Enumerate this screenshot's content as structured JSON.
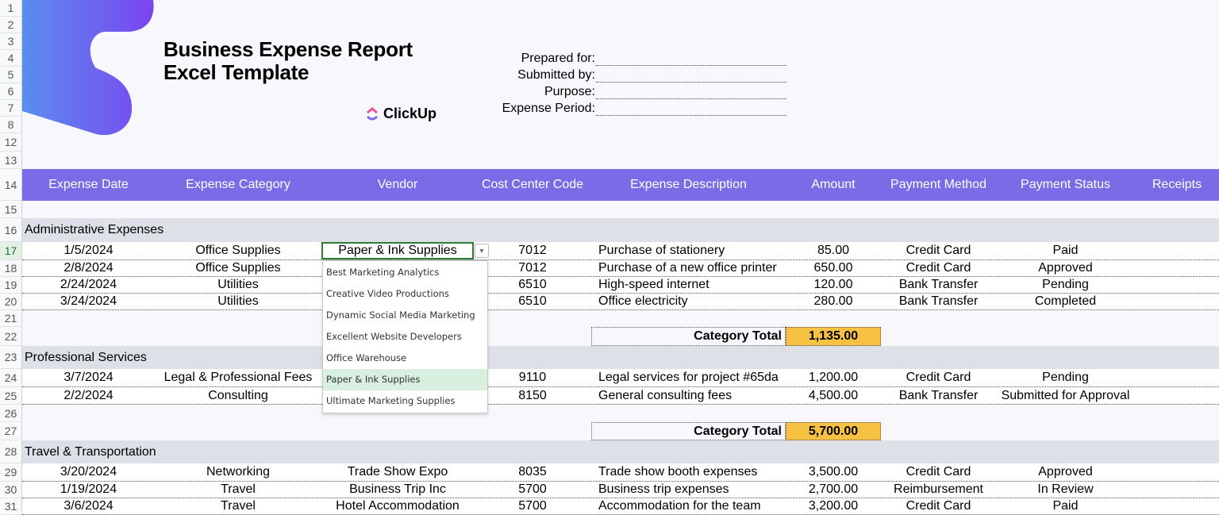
{
  "title": {
    "line1": "Business Expense Report",
    "line2": "Excel Template",
    "logo_text": "ClickUp"
  },
  "colors": {
    "header": "#7b6be6",
    "section": "#dde0e6",
    "total": "#f7c244",
    "blob_start": "#5b8def",
    "blob_end": "#7a45ef"
  },
  "meta": [
    {
      "label": "Prepared for:"
    },
    {
      "label": "Submitted by:"
    },
    {
      "label": "Purpose:"
    },
    {
      "label": "Expense Period:"
    }
  ],
  "row_numbers": [
    "1",
    "2",
    "3",
    "4",
    "5",
    "6",
    "7",
    "8",
    "12",
    "13",
    "14",
    "15",
    "16",
    "17",
    "18",
    "19",
    "20",
    "21",
    "22",
    "23",
    "24",
    "25",
    "26",
    "27",
    "28",
    "29",
    "30",
    "31"
  ],
  "columns": [
    "Expense Date",
    "Expense Category",
    "Vendor",
    "Cost Center Code",
    "Expense Description",
    "Amount",
    "Payment Method",
    "Payment Status",
    "Receipts"
  ],
  "sections": [
    {
      "name": "Administrative Expenses",
      "rows": [
        [
          "1/5/2024",
          "Office Supplies",
          "Paper & Ink Supplies",
          "7012",
          "Purchase of stationery",
          "85.00",
          "Credit Card",
          "Paid",
          ""
        ],
        [
          "2/8/2024",
          "Office Supplies",
          "",
          "7012",
          "Purchase of a new office printer",
          "650.00",
          "Credit Card",
          "Approved",
          ""
        ],
        [
          "2/24/2024",
          "Utilities",
          "",
          "6510",
          "High-speed internet",
          "120.00",
          "Bank Transfer",
          "Pending",
          ""
        ],
        [
          "3/24/2024",
          "Utilities",
          "",
          "6510",
          "Office electricity",
          "280.00",
          "Bank Transfer",
          "Completed",
          ""
        ]
      ],
      "total_label": "Category Total",
      "total": "1,135.00"
    },
    {
      "name": "Professional Services",
      "rows": [
        [
          "3/7/2024",
          "Legal & Professional Fees",
          "",
          "9110",
          "Legal services for project #65da",
          "1,200.00",
          "Credit Card",
          "Pending",
          ""
        ],
        [
          "2/2/2024",
          "Consulting",
          "",
          "8150",
          "General consulting fees",
          "4,500.00",
          "Bank Transfer",
          "Submitted for Approval",
          ""
        ]
      ],
      "total_label": "Category Total",
      "total": "5,700.00"
    },
    {
      "name": "Travel & Transportation",
      "rows": [
        [
          "3/20/2024",
          "Networking",
          "Trade Show Expo",
          "8035",
          "Trade show booth expenses",
          "3,500.00",
          "Credit Card",
          "Approved",
          ""
        ],
        [
          "1/19/2024",
          "Travel",
          "Business Trip Inc",
          "5700",
          "Business trip expenses",
          "2,700.00",
          "Reimbursement",
          "In Review",
          ""
        ],
        [
          "3/6/2024",
          "Travel",
          "Hotel Accommodation",
          "5700",
          "Accommodation for the team",
          "3,200.00",
          "Credit Card",
          "Paid",
          ""
        ]
      ]
    }
  ],
  "dropdown": {
    "selected": "Paper & Ink Supplies",
    "options": [
      "Best Marketing Analytics",
      "Creative Video Productions",
      "Dynamic Social Media Marketing",
      "Excellent Website Developers",
      "Office Warehouse",
      "Paper & Ink Supplies",
      "Ultimate Marketing Supplies"
    ],
    "icon": "chevron-down-icon"
  }
}
